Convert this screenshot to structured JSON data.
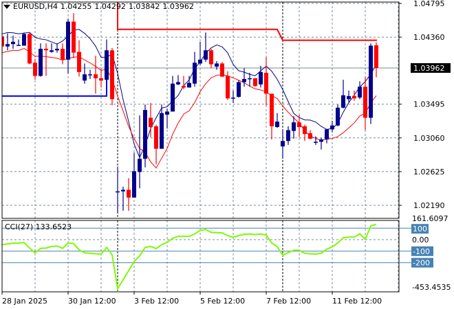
{
  "header": {
    "symbol": "EURUSD,H4",
    "open": "1.04255",
    "high": "1.04292",
    "low": "1.03842",
    "close": "1.03962"
  },
  "colors": {
    "bull": "#00008b",
    "bear": "#ff0000",
    "ma_fast": "#000080",
    "ma_slow": "#ff0000",
    "cci_line": "#7cfc00",
    "cci_levels": "#4682b4",
    "grid": "#778899",
    "price_label_bg": "#000000"
  },
  "chart_data": [
    {
      "type": "candlestick",
      "title": "EURUSD,H4",
      "ylim": [
        1.0219,
        1.04795
      ],
      "y_ticks": [
        "1.04795",
        "1.04360",
        "1.03962",
        "1.03495",
        "1.03060",
        "1.02625",
        "1.02190"
      ],
      "current_price": "1.03962",
      "x_tick_labels": [
        "28 Jan 2025",
        "30 Jan 12:00",
        "3 Feb 12:00",
        "5 Feb 12:00",
        "7 Feb 12:00",
        "11 Feb 12:00"
      ],
      "grid": true,
      "resistance_levels": [
        1.0446,
        1.0432
      ],
      "support_level": 1.036,
      "candles": [
        [
          1.0437,
          1.0437,
          1.0413,
          1.0424
        ],
        [
          1.0424,
          1.0441,
          1.0419,
          1.0427
        ],
        [
          1.0427,
          1.0438,
          1.0421,
          1.043
        ],
        [
          1.0425,
          1.0433,
          1.0425,
          1.0426
        ],
        [
          1.0425,
          1.0442,
          1.0425,
          1.044
        ],
        [
          1.044,
          1.0442,
          1.0401,
          1.0402
        ],
        [
          1.0403,
          1.0408,
          1.0381,
          1.0386
        ],
        [
          1.0386,
          1.0428,
          1.0385,
          1.0421
        ],
        [
          1.0421,
          1.0428,
          1.0386,
          1.0419
        ],
        [
          1.0417,
          1.0428,
          1.0416,
          1.0419
        ],
        [
          1.0419,
          1.0428,
          1.0416,
          1.0421
        ],
        [
          1.0421,
          1.0428,
          1.0401,
          1.0407
        ],
        [
          1.0407,
          1.046,
          1.0389,
          1.0456
        ],
        [
          1.0456,
          1.0467,
          1.0409,
          1.0416
        ],
        [
          1.0417,
          1.0432,
          1.0385,
          1.0391
        ],
        [
          1.038,
          1.0402,
          1.0376,
          1.0388
        ],
        [
          1.0388,
          1.0394,
          1.0382,
          1.0388
        ],
        [
          1.0388,
          1.0412,
          1.0363,
          1.0383
        ],
        [
          1.0383,
          1.0395,
          1.0371,
          1.038
        ],
        [
          1.0381,
          1.0433,
          1.038,
          1.0419
        ],
        [
          1.0419,
          1.0422,
          1.0348,
          1.0356
        ],
        [
          1.0237,
          1.0269,
          1.0209,
          1.0237
        ],
        [
          1.0237,
          1.0243,
          1.0212,
          1.0239
        ],
        [
          1.0239,
          1.0254,
          1.0212,
          1.0229
        ],
        [
          1.0229,
          1.0287,
          1.0229,
          1.0263
        ],
        [
          1.0262,
          1.0335,
          1.0241,
          1.0279
        ],
        [
          1.0279,
          1.0349,
          1.0268,
          1.0342
        ],
        [
          1.0332,
          1.0351,
          1.0307,
          1.032
        ],
        [
          1.0321,
          1.0323,
          1.0272,
          1.0292
        ],
        [
          1.0292,
          1.0349,
          1.0292,
          1.0338
        ],
        [
          1.0336,
          1.0344,
          1.0318,
          1.034
        ],
        [
          1.034,
          1.0386,
          1.034,
          1.0376
        ],
        [
          1.0375,
          1.0387,
          1.0374,
          1.0378
        ],
        [
          1.0373,
          1.0386,
          1.0369,
          1.0371
        ],
        [
          1.0371,
          1.0386,
          1.0371,
          1.0377
        ],
        [
          1.0376,
          1.0417,
          1.0372,
          1.0403
        ],
        [
          1.0402,
          1.043,
          1.04,
          1.0407
        ],
        [
          1.0407,
          1.0442,
          1.0404,
          1.0419
        ],
        [
          1.0419,
          1.0421,
          1.0396,
          1.0401
        ],
        [
          1.0398,
          1.0405,
          1.0394,
          1.0402
        ],
        [
          1.0402,
          1.0404,
          1.0385,
          1.0385
        ],
        [
          1.0386,
          1.0392,
          1.0355,
          1.0357
        ],
        [
          1.0358,
          1.0367,
          1.0351,
          1.0358
        ],
        [
          1.0359,
          1.038,
          1.0358,
          1.0378
        ],
        [
          1.0378,
          1.0396,
          1.0372,
          1.0382
        ],
        [
          1.0382,
          1.039,
          1.0372,
          1.0383
        ],
        [
          1.0383,
          1.0383,
          1.0372,
          1.0373
        ],
        [
          1.0375,
          1.0399,
          1.0371,
          1.0391
        ],
        [
          1.039,
          1.041,
          1.0348,
          1.0363
        ],
        [
          1.0363,
          1.0363,
          1.0304,
          1.0321
        ],
        [
          1.032,
          1.0338,
          1.0319,
          1.0327
        ],
        [
          1.0295,
          1.0317,
          1.0279,
          1.0302
        ],
        [
          1.0302,
          1.0321,
          1.0297,
          1.0316
        ],
        [
          1.0315,
          1.0334,
          1.0305,
          1.0326
        ],
        [
          1.0326,
          1.0336,
          1.0307,
          1.032
        ],
        [
          1.0321,
          1.0323,
          1.0302,
          1.0311
        ],
        [
          1.0312,
          1.0316,
          1.0304,
          1.0305
        ],
        [
          1.0301,
          1.0308,
          1.0297,
          1.0301
        ],
        [
          1.0301,
          1.0306,
          1.0291,
          1.0304
        ],
        [
          1.0304,
          1.0317,
          1.0299,
          1.0317
        ],
        [
          1.0317,
          1.0328,
          1.0313,
          1.0322
        ],
        [
          1.0322,
          1.0349,
          1.0321,
          1.0345
        ],
        [
          1.0345,
          1.0381,
          1.0344,
          1.0361
        ],
        [
          1.0356,
          1.0367,
          1.0352,
          1.036
        ],
        [
          1.036,
          1.0367,
          1.0354,
          1.0357
        ],
        [
          1.0358,
          1.0379,
          1.0356,
          1.0372
        ],
        [
          1.0372,
          1.0385,
          1.0316,
          1.0332
        ],
        [
          1.0332,
          1.0428,
          1.0324,
          1.0425
        ],
        [
          1.04255,
          1.04292,
          1.03842,
          1.03962
        ]
      ]
    },
    {
      "type": "line",
      "title": "CCI(27) 133.6523",
      "ylim": [
        -453.4535,
        161.6097
      ],
      "y_ticks": [
        "161.6097",
        "0.00",
        "-453.4535"
      ],
      "level_labels": [
        "100",
        "-100",
        "-200"
      ],
      "levels": [
        100,
        -100,
        -200
      ],
      "values": [
        -43,
        -37,
        -31,
        -29,
        -25,
        -73,
        -114,
        -76,
        -73,
        -59,
        -55,
        -76,
        -29,
        -33,
        -88,
        -114,
        -118,
        -122,
        -127,
        -67,
        -131,
        -425,
        -347,
        -269,
        -190,
        -141,
        -67,
        -59,
        -78,
        -43,
        -24,
        12,
        29,
        29,
        29,
        49,
        80,
        88,
        63,
        61,
        59,
        35,
        20,
        35,
        47,
        49,
        45,
        49,
        39,
        -29,
        -59,
        -135,
        -112,
        -92,
        -92,
        -118,
        -123,
        -125,
        -118,
        -82,
        -63,
        -29,
        16,
        22,
        22,
        51,
        2,
        120,
        133.6523
      ]
    }
  ]
}
